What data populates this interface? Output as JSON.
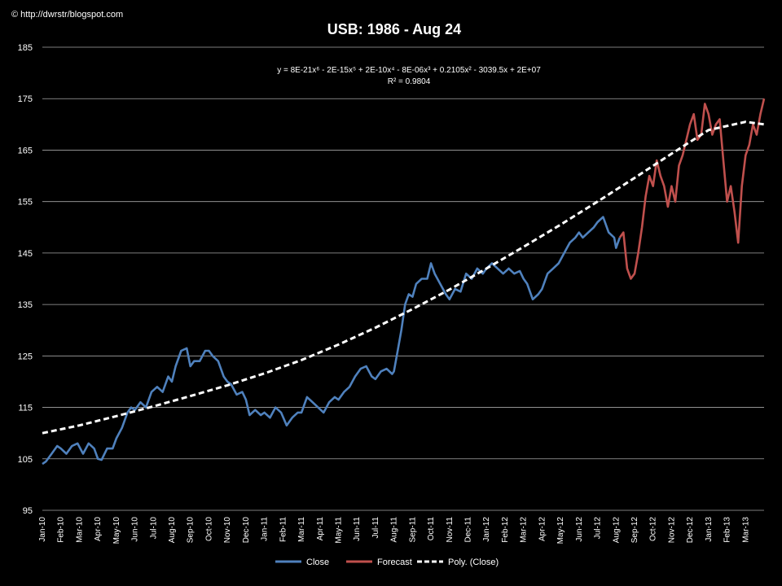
{
  "credit": "© http://dwrstr/blogspot.com",
  "chart_data": {
    "type": "line",
    "title": "USB: 1986 - Aug 24",
    "equation": "y = 8E-21x⁶ - 2E-15x⁵ + 2E-10x⁴ - 8E-06x³ + 0.2105x² - 3039.5x + 2E+07",
    "r_squared": "R² = 0.9804",
    "ylim": [
      95,
      185
    ],
    "yticks": [
      95,
      105,
      115,
      125,
      135,
      145,
      155,
      165,
      175,
      185
    ],
    "x_range": [
      0,
      39
    ],
    "x_tick_labels": [
      "Jan-10",
      "Feb-10",
      "Mar-10",
      "Apr-10",
      "May-10",
      "Jun-10",
      "Jul-10",
      "Aug-10",
      "Sep-10",
      "Oct-10",
      "Nov-10",
      "Dec-10",
      "Jan-11",
      "Feb-11",
      "Mar-11",
      "Apr-11",
      "May-11",
      "Jun-11",
      "Jul-11",
      "Aug-11",
      "Sep-11",
      "Oct-11",
      "Nov-11",
      "Dec-11",
      "Jan-12",
      "Feb-12",
      "Mar-12",
      "Apr-12",
      "May-12",
      "Jun-12",
      "Jul-12",
      "Aug-12",
      "Sep-12",
      "Oct-12",
      "Nov-12",
      "Dec-12",
      "Jan-13",
      "Feb-13",
      "Mar-13"
    ],
    "grid": true,
    "legend_position": "bottom",
    "colors": {
      "close": "#4f81bd",
      "forecast": "#c0504d",
      "poly": "#ffffff",
      "grid": "#a6a6a6"
    },
    "series": [
      {
        "name": "Close",
        "color": "#4f81bd",
        "x": [
          0,
          0.2,
          0.5,
          0.8,
          1.0,
          1.3,
          1.6,
          1.9,
          2.2,
          2.5,
          2.8,
          3.0,
          3.2,
          3.5,
          3.8,
          4.0,
          4.3,
          4.6,
          4.8,
          5.0,
          5.3,
          5.6,
          5.9,
          6.2,
          6.5,
          6.8,
          7.0,
          7.2,
          7.5,
          7.8,
          8.0,
          8.2,
          8.5,
          8.8,
          9.0,
          9.2,
          9.5,
          9.8,
          10.0,
          10.2,
          10.5,
          10.8,
          11.0,
          11.2,
          11.5,
          11.8,
          12.0,
          12.3,
          12.6,
          12.9,
          13.2,
          13.5,
          13.8,
          14.0,
          14.3,
          14.6,
          14.9,
          15.2,
          15.5,
          15.8,
          16.0,
          16.3,
          16.6,
          16.9,
          17.2,
          17.5,
          17.8,
          18.0,
          18.3,
          18.6,
          18.9,
          19.0,
          19.2,
          19.4,
          19.6,
          19.8,
          20.0,
          20.2,
          20.5,
          20.8,
          21.0,
          21.2,
          21.5,
          21.8,
          22.0,
          22.3,
          22.6,
          22.9,
          23.2,
          23.5,
          23.8,
          24.0,
          24.3,
          24.6,
          24.9,
          25.2,
          25.5,
          25.8,
          26.0,
          26.2,
          26.5,
          26.8,
          27.0,
          27.3,
          27.6,
          27.9,
          28.2,
          28.5,
          28.8,
          29.0,
          29.2,
          29.5,
          29.8,
          30.0,
          30.3,
          30.6,
          30.9,
          31.0,
          31.2
        ],
        "values": [
          104,
          104.5,
          106,
          107.5,
          107,
          106,
          107.5,
          108,
          106,
          108,
          107,
          105,
          104.8,
          107,
          107,
          109,
          111,
          114,
          115,
          114.5,
          116,
          115,
          118,
          119,
          118,
          121,
          120,
          123,
          126,
          126.5,
          123,
          124,
          124,
          126,
          126,
          125,
          124,
          121,
          120,
          119.5,
          117.5,
          118,
          116.5,
          113.5,
          114.5,
          113.5,
          114,
          113,
          115,
          114,
          111.5,
          113,
          114,
          114,
          117,
          116,
          115,
          114,
          116,
          117,
          116.5,
          118,
          119,
          121,
          122.5,
          123,
          121,
          120.5,
          122,
          122.5,
          121.5,
          122,
          126,
          130,
          135,
          137,
          136.5,
          139,
          140,
          140,
          143,
          141,
          139,
          137,
          136,
          138,
          137.5,
          141,
          140,
          142,
          141,
          142,
          143,
          142,
          141,
          142,
          141,
          141.5,
          140,
          139,
          136,
          137,
          138,
          141,
          142,
          143,
          145,
          147,
          148,
          149,
          148,
          149,
          150,
          151,
          152,
          149,
          148,
          146,
          148
        ]
      },
      {
        "name": "Forecast",
        "color": "#c0504d",
        "x": [
          31.2,
          31.4,
          31.6,
          31.8,
          32.0,
          32.2,
          32.4,
          32.6,
          32.8,
          33.0,
          33.2,
          33.4,
          33.6,
          33.8,
          34.0,
          34.2,
          34.4,
          34.6,
          34.8,
          35.0,
          35.2,
          35.4,
          35.6,
          35.8,
          36.0,
          36.2,
          36.4,
          36.6,
          36.8,
          37.0,
          37.2,
          37.4,
          37.6,
          37.8,
          38.0,
          38.2,
          38.4,
          38.6,
          38.8,
          39.0
        ],
        "values": [
          148,
          149,
          142,
          140,
          141,
          145,
          150,
          156,
          160,
          158,
          163,
          160,
          158,
          154,
          158,
          155,
          162,
          164,
          167,
          170,
          172,
          167,
          168,
          174,
          172,
          168,
          170,
          171,
          163,
          155,
          158,
          153,
          147,
          158,
          164,
          166,
          170,
          168,
          172,
          175
        ]
      },
      {
        "name": "Poly. (Close)",
        "color": "#ffffff",
        "style": "dashed",
        "x": [
          0,
          2,
          4,
          6,
          8,
          10,
          12,
          14,
          16,
          18,
          20,
          22,
          24,
          26,
          28,
          30,
          32,
          34,
          36,
          38,
          39
        ],
        "values": [
          110,
          111.5,
          113.3,
          115.2,
          117.2,
          119.3,
          121.6,
          124.2,
          127.2,
          130.5,
          134.1,
          137.9,
          142,
          146.2,
          150.5,
          155,
          159.6,
          164.3,
          168.9,
          170.5,
          170
        ]
      }
    ]
  }
}
